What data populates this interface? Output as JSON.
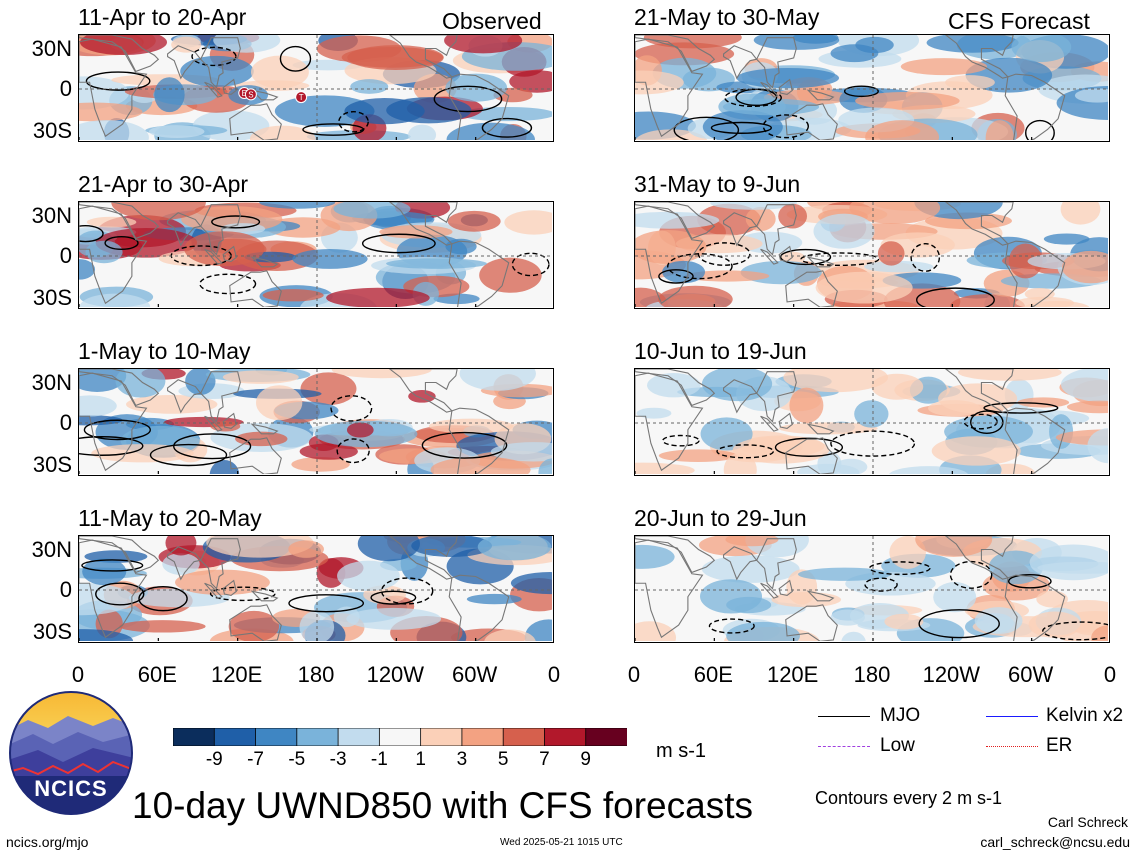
{
  "chart_data": {
    "type": "heatmap",
    "variable": "UWND850",
    "title": "10-day UWND850 with CFS forecasts",
    "units": "m s-1",
    "observed_label": "Observed",
    "forecast_label": "CFS Forecast",
    "lat_ticks": [
      "30N",
      "0",
      "30S"
    ],
    "lon_ticks": [
      "0",
      "60E",
      "120E",
      "180",
      "120W",
      "60W",
      "0"
    ],
    "lat_range": [
      -40,
      40
    ],
    "lon_range": [
      0,
      360
    ],
    "colorbar": {
      "levels": [
        "-9",
        "-7",
        "-5",
        "-3",
        "-1",
        "1",
        "3",
        "5",
        "7",
        "9"
      ],
      "colors": [
        "#0b2d5c",
        "#1f5fa8",
        "#3f86c3",
        "#7ab3da",
        "#c2dcee",
        "#f7f7f7",
        "#fbd0b8",
        "#f3a282",
        "#d6604d",
        "#b2182b",
        "#67001f"
      ]
    },
    "panels_observed": [
      {
        "label": "11-Apr to 20-Apr",
        "seed": 3
      },
      {
        "label": "21-Apr to 30-Apr",
        "seed": 7
      },
      {
        "label": "1-May to 10-May",
        "seed": 11
      },
      {
        "label": "11-May to 20-May",
        "seed": 19
      }
    ],
    "panels_forecast": [
      {
        "label": "21-May to 30-May",
        "seed": 23
      },
      {
        "label": "31-May to 9-Jun",
        "seed": 29
      },
      {
        "label": "10-Jun to 19-Jun",
        "seed": 31
      },
      {
        "label": "20-Jun to 29-Jun",
        "seed": 37
      }
    ],
    "legend": [
      {
        "name": "MJO",
        "color": "#000000"
      },
      {
        "name": "Kelvin x2",
        "color": "#1a1aff"
      },
      {
        "name": "Low",
        "color": "#a040e0"
      },
      {
        "name": "ER",
        "color": "#e02020"
      }
    ],
    "contour_note": "Contours every 2 m s-1",
    "storm_markers": [
      "E",
      "S",
      "T"
    ]
  },
  "footer": {
    "logo_text": "NCICS",
    "url": "ncics.org/mjo",
    "timestamp": "Wed 2025-05-21 1015 UTC",
    "author": "Carl Schreck",
    "email": "carl_schreck@ncsu.edu"
  }
}
